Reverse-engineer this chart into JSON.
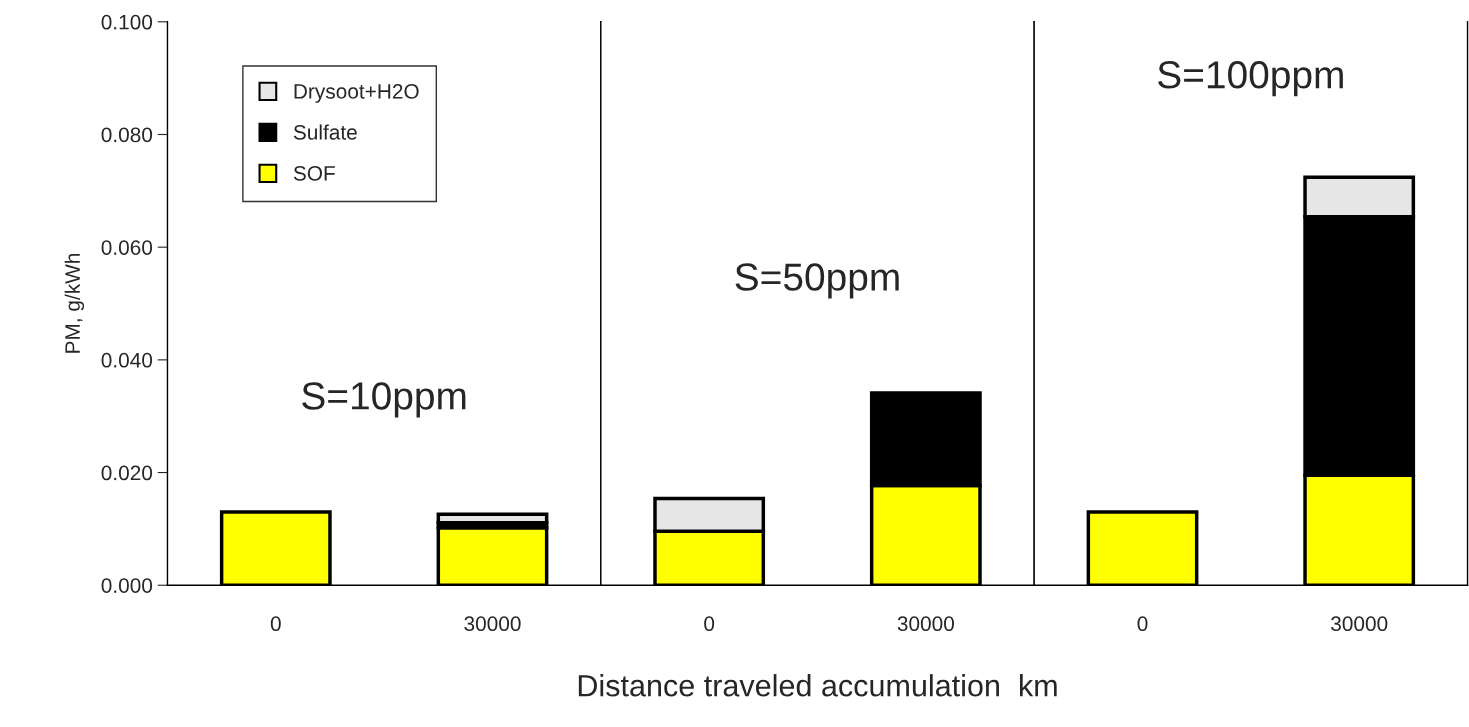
{
  "chart_data": [
    {
      "type": "bar",
      "stacked": true,
      "categories": [
        "0",
        "30000"
      ],
      "ylabel": "PM, g/kWh",
      "annotations": [
        "S=10ppm"
      ],
      "legend": "top left",
      "ylim": [
        0,
        0.1
      ],
      "yticks": [
        {
          "value": 0,
          "label": "0.000"
        },
        {
          "value": 0.02,
          "label": "0.020"
        },
        {
          "value": 0.04,
          "label": "0.040"
        },
        {
          "value": 0.06,
          "label": "0.060"
        },
        {
          "value": 0.08,
          "label": "0.080"
        },
        {
          "value": 0.1,
          "label": "0.100"
        }
      ],
      "series": [
        {
          "name": "SOF",
          "color": "#ffff00",
          "values": [
            0.013,
            0.0102
          ]
        },
        {
          "name": "Sulfate",
          "color": "#000000",
          "values": [
            null,
            0.0009
          ]
        },
        {
          "name": "Drysoot+H2O",
          "color": "#e6e6e6",
          "values": [
            null,
            0.0015
          ]
        }
      ]
    },
    {
      "type": "bar",
      "stacked": true,
      "categories": [
        "0",
        "30000"
      ],
      "xlabel": "Distance traveled accumulation  km",
      "annotations": [
        "S=50ppm"
      ],
      "tick_labels": "x",
      "ylim": [
        0,
        0.1
      ],
      "series": [
        {
          "color": "#ffff00",
          "values": [
            0.0096,
            0.0177
          ]
        },
        {
          "color": "#000000",
          "values": [
            null,
            0.0164
          ]
        },
        {
          "color": "#e6e6e6",
          "values": [
            0.0058,
            null
          ]
        }
      ]
    },
    {
      "type": "bar",
      "stacked": true,
      "categories": [
        "0",
        "30000"
      ],
      "annotations": [
        "S=100ppm"
      ],
      "tick_labels": "x",
      "ylim": [
        0,
        0.1
      ],
      "series": [
        {
          "color": "#ffff00",
          "values": [
            0.013,
            0.0195
          ]
        },
        {
          "color": "#000000",
          "values": [
            null,
            0.0459
          ]
        },
        {
          "color": "#e6e6e6",
          "values": [
            null,
            0.007
          ]
        }
      ]
    }
  ]
}
